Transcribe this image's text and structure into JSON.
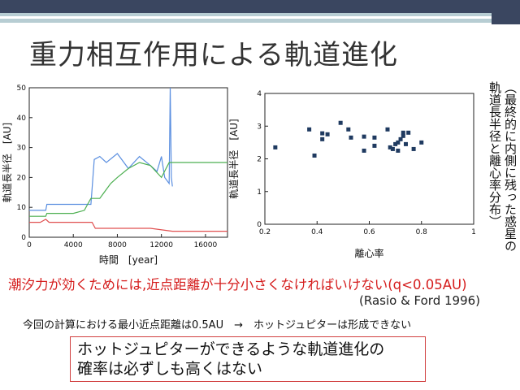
{
  "slide": {
    "title": "重力相互作用による軌道進化",
    "side_note_col1": "（最終的に内側に残った惑星の",
    "side_note_col2": "軌道長半径と離心率分布）",
    "tidal_condition": "潮汐力が効くためには,近点距離が十分小さくなければいけない(q<0.05AU)",
    "reference": "(Rasio & Ford 1996)",
    "calc_note": "今回の計算における最小近点距離は0.5AU　→　ホットジュピターは形成できない",
    "conclusion_line1": "ホットジュピターができるような軌道進化の",
    "conclusion_line2": "確率は必ずしも高くはない",
    "colors": {
      "header_dark": "#3a4660",
      "header_teal": "#b7cdd3",
      "accent_red": "#d51d1d",
      "box_border": "#d14040"
    }
  },
  "chart_data": [
    {
      "type": "line",
      "xlabel": "時間　[year]",
      "ylabel": "軌道長半径　[AU]",
      "xlim": [
        0,
        18000
      ],
      "ylim": [
        0,
        50
      ],
      "xticks": [
        "0",
        "4000",
        "8000",
        "12000",
        "16000"
      ],
      "yticks": [
        "0",
        "10",
        "20",
        "30",
        "40",
        "50"
      ],
      "series": [
        {
          "color": "#5b8fe0",
          "x": [
            0,
            1500,
            1600,
            2000,
            3500,
            5000,
            5600,
            5900,
            6400,
            7000,
            8000,
            9000,
            10000,
            11000,
            11600,
            12000,
            12300,
            12700,
            12800,
            12900,
            13000
          ],
          "y": [
            9,
            9,
            11,
            11,
            11,
            11,
            11,
            26,
            27,
            25,
            28,
            23,
            27,
            24,
            22,
            27,
            20,
            18,
            50,
            20,
            17
          ]
        },
        {
          "color": "#4caf50",
          "x": [
            0,
            1500,
            1600,
            2000,
            3000,
            4000,
            5000,
            5300,
            5600,
            6000,
            6400,
            7000,
            7400,
            8000,
            9000,
            10000,
            11000,
            12000,
            12700,
            13000,
            13500,
            15000,
            18000
          ],
          "y": [
            7,
            7,
            8,
            8,
            8,
            8,
            9,
            11,
            13,
            13,
            13,
            16,
            18,
            20,
            23,
            25,
            24,
            20,
            25,
            25,
            25,
            25,
            25
          ]
        },
        {
          "color": "#e05050",
          "x": [
            0,
            1000,
            1500,
            1800,
            2500,
            4000,
            5000,
            5400,
            5700,
            6000,
            7000,
            9000,
            11000,
            13000,
            15000,
            18000
          ],
          "y": [
            5,
            5,
            6,
            5,
            5,
            5,
            5,
            5,
            5,
            3,
            3,
            3,
            3,
            2,
            2,
            2
          ]
        }
      ]
    },
    {
      "type": "scatter",
      "xlabel": "離心率",
      "ylabel": "軌道長半径　[AU]",
      "xlim": [
        0.2,
        1
      ],
      "ylim": [
        0,
        4
      ],
      "xticks": [
        "0.2",
        "0.4",
        "0.6",
        "0.8",
        "1"
      ],
      "yticks": [
        "0",
        "1",
        "2",
        "3",
        "4"
      ],
      "series": [
        {
          "color": "#1f3a60",
          "x": [
            0.24,
            0.37,
            0.39,
            0.42,
            0.42,
            0.44,
            0.49,
            0.52,
            0.53,
            0.58,
            0.58,
            0.62,
            0.62,
            0.67,
            0.68,
            0.69,
            0.7,
            0.71,
            0.71,
            0.72,
            0.73,
            0.73,
            0.74,
            0.75,
            0.77,
            0.8
          ],
          "y": [
            2.35,
            2.9,
            2.1,
            2.78,
            2.6,
            2.75,
            3.1,
            2.9,
            2.65,
            2.68,
            2.25,
            2.65,
            2.4,
            2.9,
            2.35,
            2.3,
            2.45,
            2.25,
            2.5,
            2.6,
            2.8,
            2.7,
            2.45,
            2.8,
            2.3,
            2.5
          ]
        }
      ]
    }
  ]
}
